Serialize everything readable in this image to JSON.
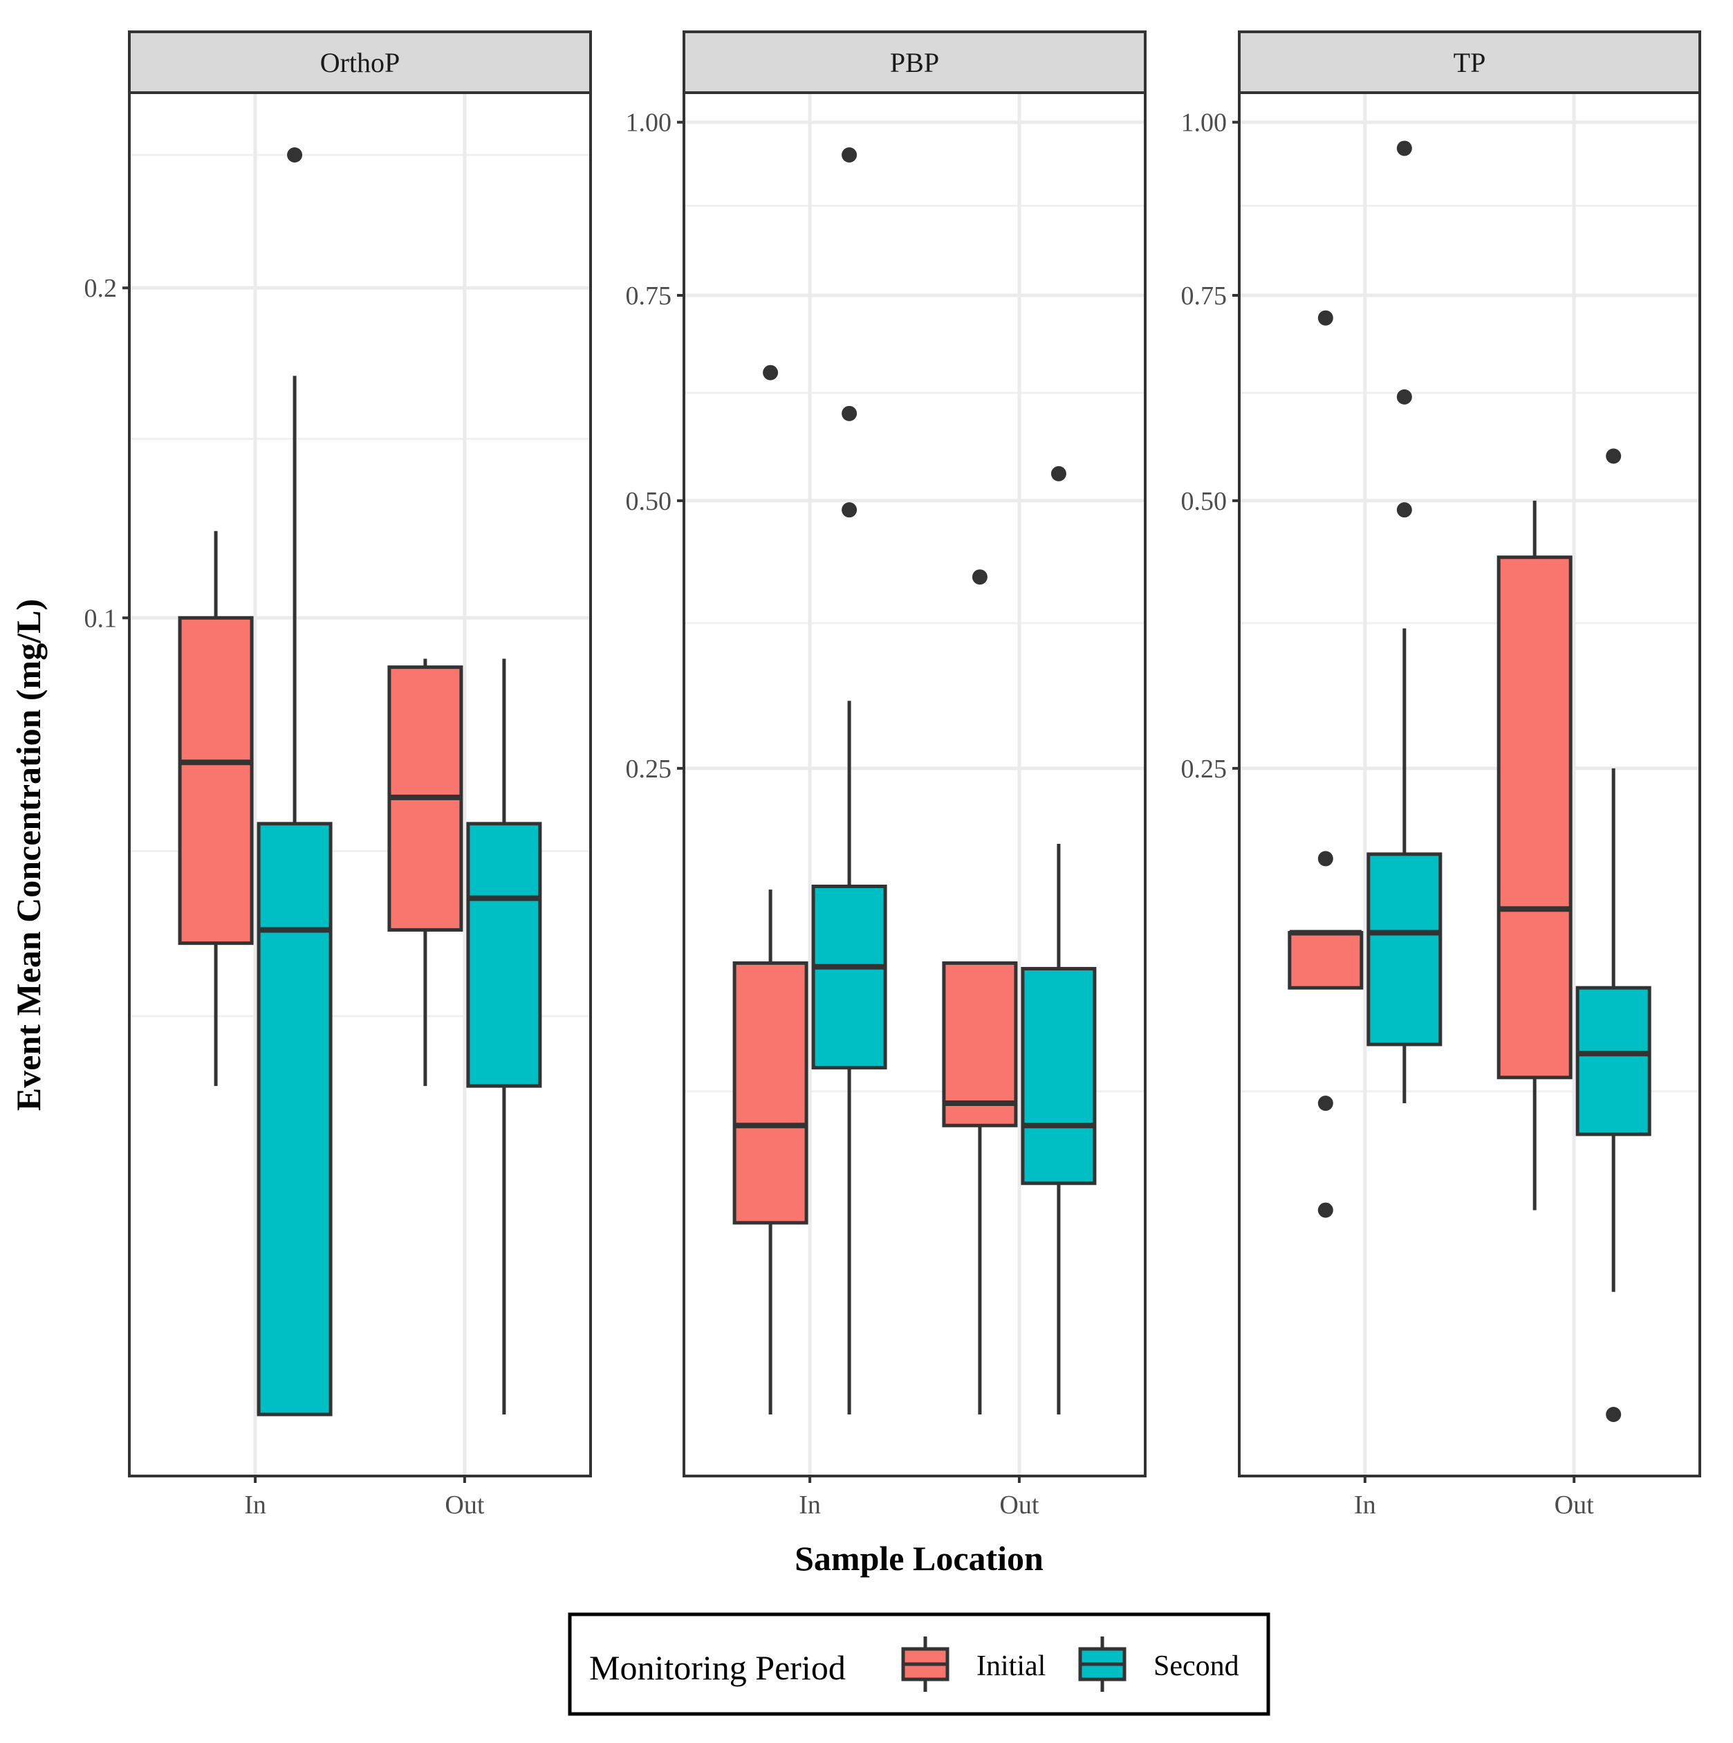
{
  "chart_data": {
    "type": "boxplot",
    "scale": "sqrt",
    "xlabel": "Sample Location",
    "ylabel": "Event Mean Concentration (mg/L)",
    "categories": [
      "In",
      "Out"
    ],
    "legend": {
      "title": "Monitoring Period",
      "position": "bottom",
      "entries": [
        {
          "name": "Initial",
          "color": "#F8766D"
        },
        {
          "name": "Second",
          "color": "#00BFC4"
        }
      ]
    },
    "facets": [
      {
        "title": "OrthoP",
        "ylim": [
          0,
          0.27
        ],
        "major_ticks": [
          0.1,
          0.2
        ],
        "minor_ticks": [
          0.025,
          0.05,
          0.15,
          0.25
        ],
        "boxes": [
          {
            "category": "In",
            "period": "Initial",
            "whisker_low": 0.017,
            "q1": 0.035,
            "median": 0.067,
            "q3": 0.1,
            "whisker_high": 0.123,
            "outliers": []
          },
          {
            "category": "In",
            "period": "Second",
            "whisker_low": 0.0,
            "q1": 0.0,
            "median": 0.037,
            "q3": 0.055,
            "whisker_high": 0.17,
            "outliers": [
              0.25
            ]
          },
          {
            "category": "Out",
            "period": "Initial",
            "whisker_low": 0.017,
            "q1": 0.037,
            "median": 0.06,
            "q3": 0.088,
            "whisker_high": 0.09,
            "outliers": []
          },
          {
            "category": "Out",
            "period": "Second",
            "whisker_low": 0.0,
            "q1": 0.017,
            "median": 0.042,
            "q3": 0.055,
            "whisker_high": 0.09,
            "outliers": []
          }
        ]
      },
      {
        "title": "PBP",
        "ylim": [
          0,
          1.05
        ],
        "major_ticks": [
          0.25,
          0.5,
          0.75,
          1.0
        ],
        "minor_ticks": [
          0.0625,
          0.375,
          0.625,
          0.875
        ],
        "labels": [
          "0.25",
          "0.50",
          "0.75",
          "1.00"
        ],
        "boxes": [
          {
            "category": "In",
            "period": "Initial",
            "whisker_low": 0.0,
            "q1": 0.022,
            "median": 0.05,
            "q3": 0.122,
            "whisker_high": 0.165,
            "outliers": [
              0.65
            ]
          },
          {
            "category": "In",
            "period": "Second",
            "whisker_low": 0.0,
            "q1": 0.072,
            "median": 0.12,
            "q3": 0.167,
            "whisker_high": 0.305,
            "outliers": [
              0.6,
              0.49,
              0.95
            ]
          },
          {
            "category": "Out",
            "period": "Initial",
            "whisker_low": 0.0,
            "q1": 0.05,
            "median": 0.058,
            "q3": 0.122,
            "whisker_high": 0.122,
            "outliers": [
              0.42
            ]
          },
          {
            "category": "Out",
            "period": "Second",
            "whisker_low": 0.0,
            "q1": 0.032,
            "median": 0.05,
            "q3": 0.119,
            "whisker_high": 0.195,
            "outliers": [
              0.53
            ]
          }
        ]
      },
      {
        "title": "TP",
        "ylim": [
          0,
          1.05
        ],
        "major_ticks": [
          0.25,
          0.5,
          0.75,
          1.0
        ],
        "minor_ticks": [
          0.0625,
          0.375,
          0.625,
          0.875
        ],
        "labels": [
          "0.25",
          "0.50",
          "0.75",
          "1.00"
        ],
        "boxes": [
          {
            "category": "In",
            "period": "Initial",
            "whisker_low": 0.109,
            "q1": 0.109,
            "median": 0.139,
            "q3": 0.139,
            "whisker_high": 0.139,
            "outliers": [
              0.185,
              0.058,
              0.025,
              0.72
            ]
          },
          {
            "category": "In",
            "period": "Second",
            "whisker_low": 0.058,
            "q1": 0.082,
            "median": 0.139,
            "q3": 0.188,
            "whisker_high": 0.37,
            "outliers": [
              0.62,
              0.49,
              0.96
            ]
          },
          {
            "category": "Out",
            "period": "Initial",
            "whisker_low": 0.025,
            "q1": 0.068,
            "median": 0.153,
            "q3": 0.44,
            "whisker_high": 0.5,
            "outliers": []
          },
          {
            "category": "Out",
            "period": "Second",
            "whisker_low": 0.009,
            "q1": 0.047,
            "median": 0.078,
            "q3": 0.109,
            "whisker_high": 0.25,
            "outliers": [
              0.0,
              0.55
            ]
          }
        ]
      }
    ]
  }
}
